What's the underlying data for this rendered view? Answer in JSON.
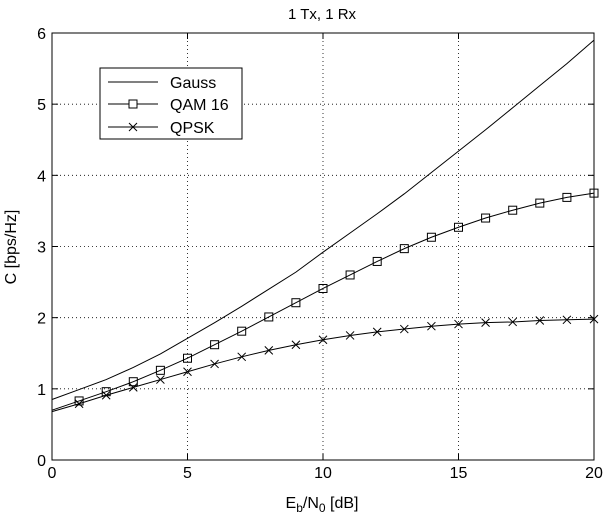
{
  "chart_data": {
    "type": "line",
    "title": "1 Tx, 1 Rx",
    "xlabel": {
      "base": "E",
      "sub1": "b",
      "mid": "/N",
      "sub2": "0",
      "tail": " [dB]"
    },
    "ylabel": "C [bps/Hz]",
    "xlim": [
      0,
      20
    ],
    "ylim": [
      0,
      6
    ],
    "xticks": [
      0,
      5,
      10,
      15,
      20
    ],
    "yticks": [
      0,
      1,
      2,
      3,
      4,
      5,
      6
    ],
    "grid": true,
    "legend_position": "top-left",
    "series": [
      {
        "name": "Gauss",
        "marker": "none",
        "x": [
          0,
          1,
          2,
          3,
          4,
          5,
          6,
          7,
          8,
          9,
          10,
          11,
          12,
          13,
          14,
          15,
          16,
          17,
          18,
          19,
          20
        ],
        "values": [
          0.85,
          0.99,
          1.13,
          1.3,
          1.49,
          1.71,
          1.93,
          2.16,
          2.4,
          2.64,
          2.92,
          3.19,
          3.46,
          3.74,
          4.04,
          4.34,
          4.64,
          4.95,
          5.26,
          5.57,
          5.9
        ]
      },
      {
        "name": "QAM 16",
        "marker": "square",
        "x": [
          0,
          1,
          2,
          3,
          4,
          5,
          6,
          7,
          8,
          9,
          10,
          11,
          12,
          13,
          14,
          15,
          16,
          17,
          18,
          19,
          20
        ],
        "values": [
          0.7,
          0.83,
          0.96,
          1.1,
          1.26,
          1.43,
          1.62,
          1.81,
          2.01,
          2.21,
          2.41,
          2.6,
          2.79,
          2.97,
          3.13,
          3.27,
          3.4,
          3.51,
          3.61,
          3.69,
          3.75
        ]
      },
      {
        "name": "QPSK",
        "marker": "x",
        "x": [
          0,
          1,
          2,
          3,
          4,
          5,
          6,
          7,
          8,
          9,
          10,
          11,
          12,
          13,
          14,
          15,
          16,
          17,
          18,
          19,
          20
        ],
        "values": [
          0.68,
          0.79,
          0.91,
          1.02,
          1.13,
          1.24,
          1.35,
          1.45,
          1.54,
          1.62,
          1.69,
          1.75,
          1.8,
          1.84,
          1.88,
          1.91,
          1.93,
          1.94,
          1.96,
          1.97,
          1.98
        ]
      }
    ]
  }
}
